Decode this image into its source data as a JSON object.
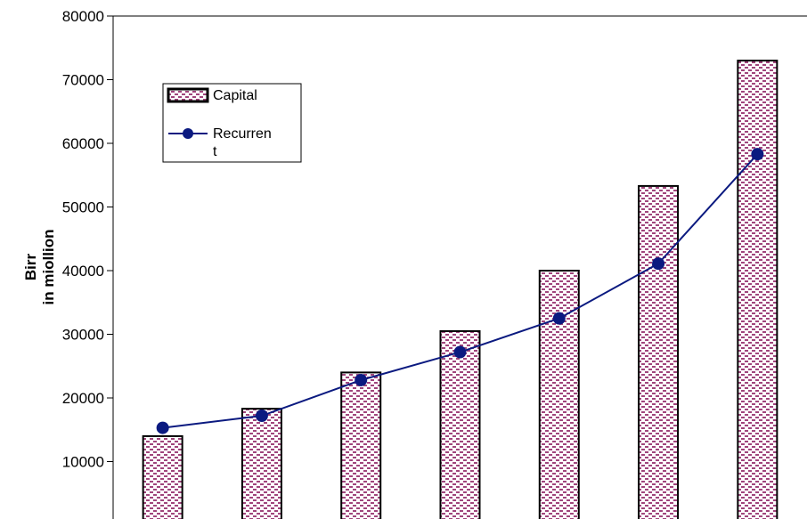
{
  "chart_data": {
    "type": "bar",
    "title": "",
    "xlabel": "",
    "ylabel_lines": [
      "Birr",
      "in miollion"
    ],
    "ylim": [
      0,
      80000
    ],
    "yticks": [
      10000,
      20000,
      30000,
      40000,
      50000,
      60000,
      70000,
      80000
    ],
    "ytick_labels": [
      "10000",
      "20000",
      "30000",
      "40000",
      "50000",
      "60000",
      "70000",
      "80000"
    ],
    "categories": [
      "",
      "",
      "",
      "",
      "",
      "",
      ""
    ],
    "grid": false,
    "legend_position": "top-left",
    "series": [
      {
        "name": "Capital",
        "type": "bar",
        "pattern": "pink-dotted",
        "values": [
          14000,
          18300,
          24000,
          30500,
          40000,
          53300,
          73000
        ]
      },
      {
        "name": "Recurrent",
        "legend_lines": [
          "Recurren",
          "t"
        ],
        "type": "line",
        "color": "#0b1a80",
        "values": [
          15300,
          17200,
          22800,
          27200,
          32500,
          41100,
          58300
        ]
      }
    ],
    "colors": {
      "bar_fill": "#ffffff",
      "bar_pattern": "#a0457c",
      "line": "#0b1a80",
      "axis": "#000000"
    }
  }
}
